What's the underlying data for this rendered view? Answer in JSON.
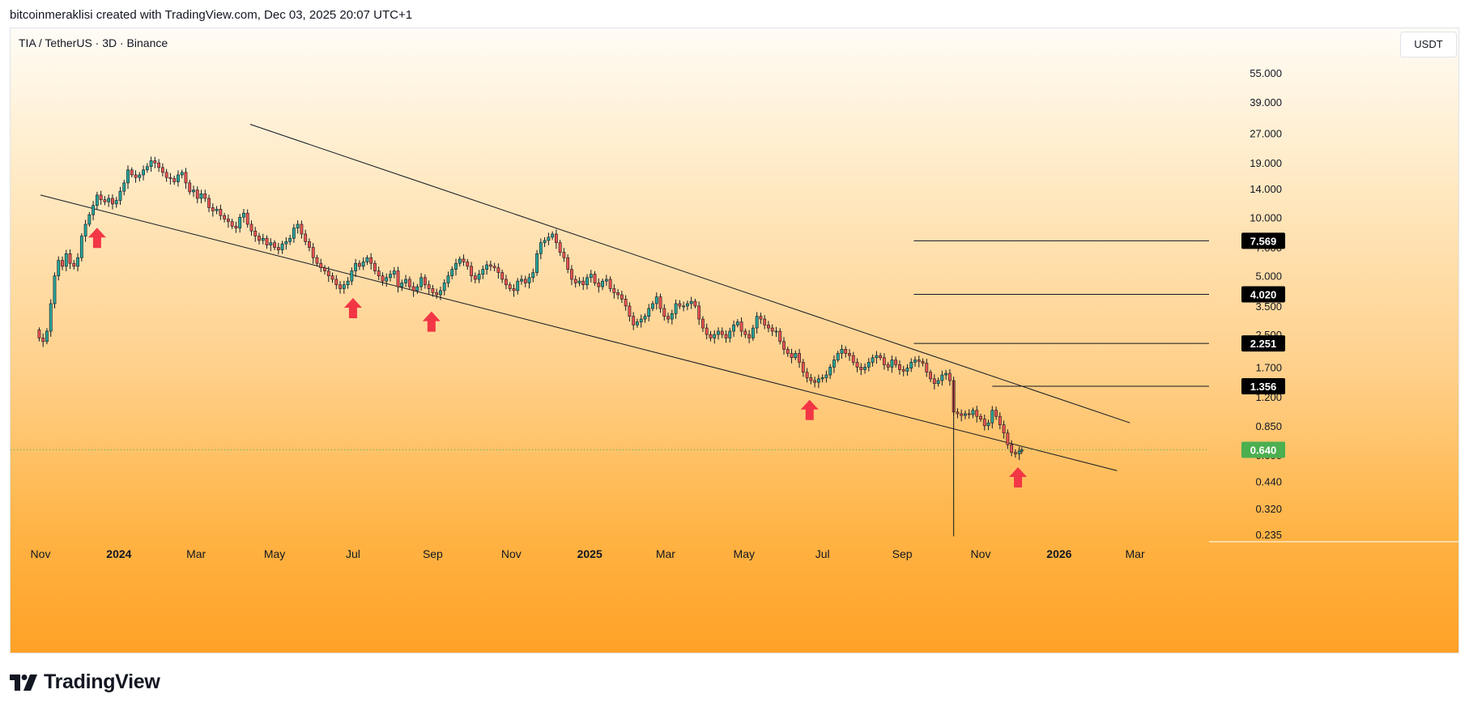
{
  "header": {
    "created_by": "bitcoinmeraklisi created with TradingView.com, Dec 03, 2025 20:07 UTC+1"
  },
  "symbol_title": "TIA / TetherUS · 3D · Binance",
  "currency_button": "USDT",
  "footer": {
    "brand": "TradingView"
  },
  "colors": {
    "up": "#26a69a",
    "down": "#ef5350",
    "arrow": "#f23645",
    "current_price_bg": "#4caf50",
    "level_bg": "#000000"
  },
  "chart_data": {
    "type": "candlestick",
    "scale": "log",
    "ylim": [
      0.22,
      70
    ],
    "xlim": [
      "2023-10-15",
      "2026-04-20"
    ],
    "y_ticks": [
      "55.000",
      "39.000",
      "27.000",
      "19.000",
      "14.000",
      "10.000",
      "7.000",
      "5.000",
      "3.500",
      "2.500",
      "1.700",
      "1.200",
      "0.850",
      "0.600",
      "0.440",
      "0.320",
      "0.235"
    ],
    "x_ticks": [
      {
        "label": "Nov",
        "date": "2023-11-01",
        "bold": false
      },
      {
        "label": "2024",
        "date": "2024-01-01",
        "bold": true
      },
      {
        "label": "Mar",
        "date": "2024-03-01",
        "bold": false
      },
      {
        "label": "May",
        "date": "2024-05-01",
        "bold": false
      },
      {
        "label": "Jul",
        "date": "2024-07-01",
        "bold": false
      },
      {
        "label": "Sep",
        "date": "2024-09-01",
        "bold": false
      },
      {
        "label": "Nov",
        "date": "2024-11-01",
        "bold": false
      },
      {
        "label": "2025",
        "date": "2025-01-01",
        "bold": true
      },
      {
        "label": "Mar",
        "date": "2025-03-01",
        "bold": false
      },
      {
        "label": "May",
        "date": "2025-05-01",
        "bold": false
      },
      {
        "label": "Jul",
        "date": "2025-07-01",
        "bold": false
      },
      {
        "label": "Sep",
        "date": "2025-09-01",
        "bold": false
      },
      {
        "label": "Nov",
        "date": "2025-11-01",
        "bold": false
      },
      {
        "label": "2026",
        "date": "2026-01-01",
        "bold": true
      },
      {
        "label": "Mar",
        "date": "2026-03-01",
        "bold": false
      }
    ],
    "current_price": {
      "label": "0.640",
      "value": 0.64
    },
    "levels": [
      {
        "label": "7.569",
        "value": 7.569,
        "from": "2025-09-10"
      },
      {
        "label": "4.020",
        "value": 4.02,
        "from": "2025-09-10"
      },
      {
        "label": "2.251",
        "value": 2.251,
        "from": "2025-09-10"
      },
      {
        "label": "1.356",
        "value": 1.356,
        "from": "2025-11-10"
      }
    ],
    "trendlines": [
      {
        "name": "upper",
        "from": {
          "date": "2024-04-12",
          "value": 30
        },
        "to": {
          "date": "2026-02-25",
          "value": 0.88
        }
      },
      {
        "name": "lower",
        "from": {
          "date": "2023-11-01",
          "value": 13
        },
        "to": {
          "date": "2026-02-15",
          "value": 0.5
        }
      }
    ],
    "arrows": [
      {
        "date": "2023-12-15",
        "value": 7.8
      },
      {
        "date": "2024-07-01",
        "value": 3.4
      },
      {
        "date": "2024-08-31",
        "value": 2.9
      },
      {
        "date": "2025-06-21",
        "value": 1.02
      },
      {
        "date": "2025-11-30",
        "value": 0.46
      }
    ],
    "price_path": [
      [
        "2023-10-31",
        2.4
      ],
      [
        "2023-11-03",
        2.3
      ],
      [
        "2023-11-06",
        2.6
      ],
      [
        "2023-11-09",
        3.6
      ],
      [
        "2023-11-12",
        5.0
      ],
      [
        "2023-11-15",
        6.0
      ],
      [
        "2023-11-18",
        5.6
      ],
      [
        "2023-11-21",
        6.5
      ],
      [
        "2023-11-24",
        5.8
      ],
      [
        "2023-11-27",
        5.6
      ],
      [
        "2023-11-30",
        6.2
      ],
      [
        "2023-12-03",
        8.0
      ],
      [
        "2023-12-06",
        9.2
      ],
      [
        "2023-12-09",
        10.3
      ],
      [
        "2023-12-12",
        11.5
      ],
      [
        "2023-12-15",
        13.0
      ],
      [
        "2023-12-18",
        12.3
      ],
      [
        "2023-12-21",
        12.0
      ],
      [
        "2023-12-24",
        12.5
      ],
      [
        "2023-12-27",
        11.7
      ],
      [
        "2023-12-30",
        12.2
      ],
      [
        "2024-01-02",
        13.6
      ],
      [
        "2024-01-05",
        15.0
      ],
      [
        "2024-01-08",
        17.5
      ],
      [
        "2024-01-11",
        16.5
      ],
      [
        "2024-01-14",
        16.0
      ],
      [
        "2024-01-17",
        16.5
      ],
      [
        "2024-01-20",
        17.5
      ],
      [
        "2024-01-23",
        18.2
      ],
      [
        "2024-01-26",
        19.5
      ],
      [
        "2024-01-29",
        19.0
      ],
      [
        "2024-02-01",
        18.0
      ],
      [
        "2024-02-04",
        17.0
      ],
      [
        "2024-02-07",
        16.0
      ],
      [
        "2024-02-10",
        15.8
      ],
      [
        "2024-02-13",
        15.2
      ],
      [
        "2024-02-16",
        16.5
      ],
      [
        "2024-02-19",
        17.0
      ],
      [
        "2024-02-22",
        15.0
      ],
      [
        "2024-02-25",
        13.5
      ],
      [
        "2024-02-28",
        13.8
      ],
      [
        "2024-03-02",
        12.5
      ],
      [
        "2024-03-05",
        13.2
      ],
      [
        "2024-03-08",
        12.5
      ],
      [
        "2024-03-11",
        11.2
      ],
      [
        "2024-03-14",
        10.8
      ],
      [
        "2024-03-17",
        11.0
      ],
      [
        "2024-03-20",
        10.2
      ],
      [
        "2024-03-23",
        9.8
      ],
      [
        "2024-03-26",
        9.5
      ],
      [
        "2024-03-29",
        9.0
      ],
      [
        "2024-04-01",
        8.8
      ],
      [
        "2024-04-04",
        10.0
      ],
      [
        "2024-04-07",
        10.5
      ],
      [
        "2024-04-10",
        9.2
      ],
      [
        "2024-04-13",
        8.5
      ],
      [
        "2024-04-16",
        8.0
      ],
      [
        "2024-04-19",
        7.6
      ],
      [
        "2024-04-22",
        7.8
      ],
      [
        "2024-04-25",
        7.2
      ],
      [
        "2024-04-28",
        7.4
      ],
      [
        "2024-05-01",
        7.0
      ],
      [
        "2024-05-04",
        6.8
      ],
      [
        "2024-05-07",
        7.3
      ],
      [
        "2024-05-10",
        7.5
      ],
      [
        "2024-05-13",
        7.8
      ],
      [
        "2024-05-16",
        8.8
      ],
      [
        "2024-05-19",
        9.2
      ],
      [
        "2024-05-22",
        8.2
      ],
      [
        "2024-05-25",
        7.5
      ],
      [
        "2024-05-28",
        7.0
      ],
      [
        "2024-05-31",
        6.2
      ],
      [
        "2024-06-03",
        5.8
      ],
      [
        "2024-06-06",
        5.5
      ],
      [
        "2024-06-09",
        5.3
      ],
      [
        "2024-06-12",
        5.0
      ],
      [
        "2024-06-15",
        4.8
      ],
      [
        "2024-06-18",
        4.5
      ],
      [
        "2024-06-21",
        4.3
      ],
      [
        "2024-06-24",
        4.5
      ],
      [
        "2024-06-27",
        4.7
      ],
      [
        "2024-06-30",
        5.3
      ],
      [
        "2024-07-03",
        5.8
      ],
      [
        "2024-07-06",
        5.6
      ],
      [
        "2024-07-09",
        5.9
      ],
      [
        "2024-07-12",
        6.2
      ],
      [
        "2024-07-15",
        5.8
      ],
      [
        "2024-07-18",
        5.3
      ],
      [
        "2024-07-21",
        5.0
      ],
      [
        "2024-07-24",
        4.7
      ],
      [
        "2024-07-27",
        4.9
      ],
      [
        "2024-07-30",
        5.1
      ],
      [
        "2024-08-02",
        5.3
      ],
      [
        "2024-08-05",
        4.4
      ],
      [
        "2024-08-08",
        4.6
      ],
      [
        "2024-08-11",
        4.8
      ],
      [
        "2024-08-14",
        4.4
      ],
      [
        "2024-08-17",
        4.2
      ],
      [
        "2024-08-20",
        4.4
      ],
      [
        "2024-08-23",
        4.9
      ],
      [
        "2024-08-26",
        4.5
      ],
      [
        "2024-08-29",
        4.3
      ],
      [
        "2024-09-01",
        4.1
      ],
      [
        "2024-09-04",
        4.0
      ],
      [
        "2024-09-07",
        4.2
      ],
      [
        "2024-09-10",
        4.6
      ],
      [
        "2024-09-13",
        5.0
      ],
      [
        "2024-09-16",
        5.4
      ],
      [
        "2024-09-19",
        5.8
      ],
      [
        "2024-09-22",
        6.1
      ],
      [
        "2024-09-25",
        5.9
      ],
      [
        "2024-09-28",
        5.6
      ],
      [
        "2024-10-01",
        5.0
      ],
      [
        "2024-10-04",
        4.8
      ],
      [
        "2024-10-07",
        5.1
      ],
      [
        "2024-10-10",
        5.4
      ],
      [
        "2024-10-13",
        5.7
      ],
      [
        "2024-10-16",
        5.6
      ],
      [
        "2024-10-19",
        5.5
      ],
      [
        "2024-10-22",
        5.2
      ],
      [
        "2024-10-25",
        4.8
      ],
      [
        "2024-10-28",
        4.5
      ],
      [
        "2024-10-31",
        4.3
      ],
      [
        "2024-11-03",
        4.2
      ],
      [
        "2024-11-06",
        4.7
      ],
      [
        "2024-11-09",
        4.8
      ],
      [
        "2024-11-12",
        4.6
      ],
      [
        "2024-11-15",
        4.9
      ],
      [
        "2024-11-18",
        5.2
      ],
      [
        "2024-11-21",
        6.5
      ],
      [
        "2024-11-24",
        7.4
      ],
      [
        "2024-11-27",
        7.6
      ],
      [
        "2024-11-30",
        7.9
      ],
      [
        "2024-12-03",
        8.2
      ],
      [
        "2024-12-06",
        7.4
      ],
      [
        "2024-12-09",
        6.6
      ],
      [
        "2024-12-12",
        6.2
      ],
      [
        "2024-12-15",
        5.4
      ],
      [
        "2024-12-18",
        4.8
      ],
      [
        "2024-12-21",
        4.6
      ],
      [
        "2024-12-24",
        4.7
      ],
      [
        "2024-12-27",
        4.5
      ],
      [
        "2024-12-30",
        4.9
      ],
      [
        "2025-01-02",
        5.1
      ],
      [
        "2025-01-05",
        4.6
      ],
      [
        "2025-01-08",
        4.4
      ],
      [
        "2025-01-11",
        4.7
      ],
      [
        "2025-01-14",
        4.8
      ],
      [
        "2025-01-17",
        4.3
      ],
      [
        "2025-01-20",
        4.1
      ],
      [
        "2025-01-23",
        4.0
      ],
      [
        "2025-01-26",
        3.8
      ],
      [
        "2025-01-29",
        3.5
      ],
      [
        "2025-02-01",
        3.1
      ],
      [
        "2025-02-04",
        2.8
      ],
      [
        "2025-02-07",
        2.9
      ],
      [
        "2025-02-10",
        3.0
      ],
      [
        "2025-02-13",
        3.1
      ],
      [
        "2025-02-16",
        3.4
      ],
      [
        "2025-02-19",
        3.6
      ],
      [
        "2025-02-22",
        3.9
      ],
      [
        "2025-02-25",
        3.4
      ],
      [
        "2025-02-28",
        3.1
      ],
      [
        "2025-03-03",
        3.0
      ],
      [
        "2025-03-06",
        3.2
      ],
      [
        "2025-03-09",
        3.6
      ],
      [
        "2025-03-12",
        3.5
      ],
      [
        "2025-03-15",
        3.5
      ],
      [
        "2025-03-18",
        3.6
      ],
      [
        "2025-03-21",
        3.7
      ],
      [
        "2025-03-24",
        3.5
      ],
      [
        "2025-03-27",
        3.0
      ],
      [
        "2025-03-30",
        2.7
      ],
      [
        "2025-04-02",
        2.5
      ],
      [
        "2025-04-05",
        2.4
      ],
      [
        "2025-04-08",
        2.5
      ],
      [
        "2025-04-11",
        2.6
      ],
      [
        "2025-04-14",
        2.5
      ],
      [
        "2025-04-17",
        2.4
      ],
      [
        "2025-04-20",
        2.6
      ],
      [
        "2025-04-23",
        2.8
      ],
      [
        "2025-04-26",
        2.9
      ],
      [
        "2025-04-29",
        2.6
      ],
      [
        "2025-05-02",
        2.5
      ],
      [
        "2025-05-05",
        2.4
      ],
      [
        "2025-05-08",
        2.7
      ],
      [
        "2025-05-11",
        3.1
      ],
      [
        "2025-05-14",
        3.0
      ],
      [
        "2025-05-17",
        2.8
      ],
      [
        "2025-05-20",
        2.7
      ],
      [
        "2025-05-23",
        2.6
      ],
      [
        "2025-05-26",
        2.6
      ],
      [
        "2025-05-29",
        2.3
      ],
      [
        "2025-06-01",
        2.1
      ],
      [
        "2025-06-04",
        2.0
      ],
      [
        "2025-06-07",
        1.9
      ],
      [
        "2025-06-10",
        2.0
      ],
      [
        "2025-06-13",
        1.8
      ],
      [
        "2025-06-16",
        1.6
      ],
      [
        "2025-06-19",
        1.5
      ],
      [
        "2025-06-22",
        1.45
      ],
      [
        "2025-06-25",
        1.42
      ],
      [
        "2025-06-28",
        1.48
      ],
      [
        "2025-07-01",
        1.5
      ],
      [
        "2025-07-04",
        1.55
      ],
      [
        "2025-07-07",
        1.7
      ],
      [
        "2025-07-10",
        1.85
      ],
      [
        "2025-07-13",
        2.0
      ],
      [
        "2025-07-16",
        2.1
      ],
      [
        "2025-07-19",
        2.0
      ],
      [
        "2025-07-22",
        1.95
      ],
      [
        "2025-07-25",
        1.8
      ],
      [
        "2025-07-28",
        1.7
      ],
      [
        "2025-07-31",
        1.65
      ],
      [
        "2025-08-03",
        1.7
      ],
      [
        "2025-08-06",
        1.8
      ],
      [
        "2025-08-09",
        1.9
      ],
      [
        "2025-08-12",
        1.95
      ],
      [
        "2025-08-15",
        1.9
      ],
      [
        "2025-08-18",
        1.75
      ],
      [
        "2025-08-21",
        1.7
      ],
      [
        "2025-08-24",
        1.85
      ],
      [
        "2025-08-27",
        1.75
      ],
      [
        "2025-08-30",
        1.65
      ],
      [
        "2025-09-02",
        1.62
      ],
      [
        "2025-09-05",
        1.68
      ],
      [
        "2025-09-08",
        1.8
      ],
      [
        "2025-09-11",
        1.85
      ],
      [
        "2025-09-14",
        1.82
      ],
      [
        "2025-09-17",
        1.78
      ],
      [
        "2025-09-20",
        1.6
      ],
      [
        "2025-09-23",
        1.48
      ],
      [
        "2025-09-26",
        1.4
      ],
      [
        "2025-09-29",
        1.45
      ],
      [
        "2025-10-02",
        1.55
      ],
      [
        "2025-10-05",
        1.58
      ],
      [
        "2025-10-08",
        1.45
      ],
      [
        "2025-10-11",
        1.0
      ],
      [
        "2025-10-14",
        0.98
      ],
      [
        "2025-10-17",
        0.96
      ],
      [
        "2025-10-20",
        0.98
      ],
      [
        "2025-10-23",
        0.97
      ],
      [
        "2025-10-26",
        1.02
      ],
      [
        "2025-10-29",
        0.95
      ],
      [
        "2025-11-01",
        0.92
      ],
      [
        "2025-11-04",
        0.85
      ],
      [
        "2025-11-07",
        0.88
      ],
      [
        "2025-11-10",
        1.02
      ],
      [
        "2025-11-13",
        0.95
      ],
      [
        "2025-11-16",
        0.86
      ],
      [
        "2025-11-19",
        0.78
      ],
      [
        "2025-11-22",
        0.68
      ],
      [
        "2025-11-25",
        0.62
      ],
      [
        "2025-11-28",
        0.61
      ],
      [
        "2025-12-01",
        0.63
      ],
      [
        "2025-12-03",
        0.64
      ]
    ],
    "candle_interval_days": 3
  }
}
